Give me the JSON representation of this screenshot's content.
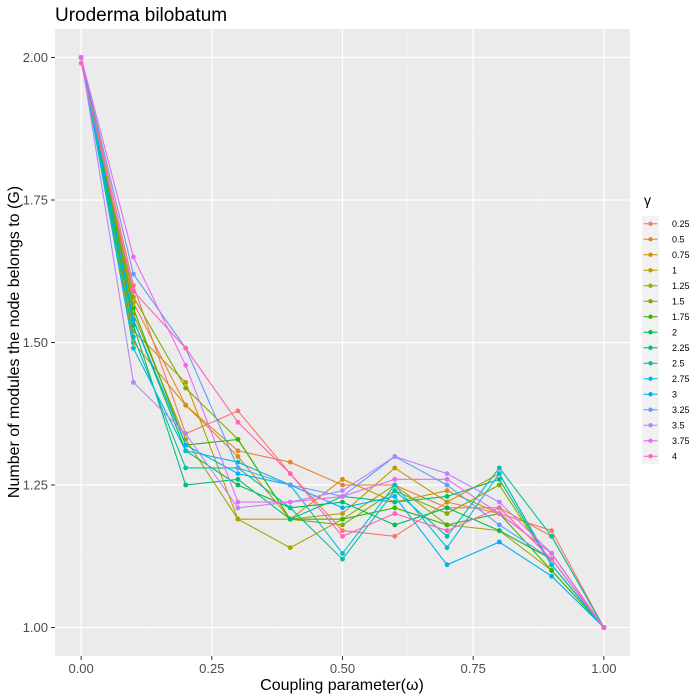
{
  "chart_data": {
    "type": "line",
    "title": "Uroderma bilobatum",
    "xlabel": "Coupling parameter(ω)",
    "ylabel": "Number of modules the node belongs to (G)",
    "x": [
      0,
      0.1,
      0.2,
      0.3,
      0.4,
      0.5,
      0.6,
      0.7,
      0.8,
      0.9,
      1.0
    ],
    "xlim": [
      -0.05,
      1.05
    ],
    "ylim": [
      0.95,
      2.05
    ],
    "xticks": [
      0,
      0.25,
      0.5,
      0.75,
      1
    ],
    "xtick_labels": [
      "0.00",
      "0.25",
      "0.50",
      "0.75",
      "1.00"
    ],
    "yticks": [
      1,
      1.25,
      1.5,
      1.75,
      2
    ],
    "ytick_labels": [
      "1.00",
      "1.25",
      "1.50",
      "1.75",
      "2.00"
    ],
    "grid": true,
    "legend_title": "γ",
    "legend_position": "right",
    "series": [
      {
        "name": "0.25",
        "color": "#F8766D",
        "values": [
          2.0,
          1.6,
          1.34,
          1.38,
          1.27,
          1.17,
          1.16,
          1.22,
          1.2,
          1.17,
          1.0
        ]
      },
      {
        "name": "0.5",
        "color": "#EA8331",
        "values": [
          2.0,
          1.57,
          1.39,
          1.31,
          1.29,
          1.25,
          1.25,
          1.21,
          1.21,
          1.16,
          1.0
        ]
      },
      {
        "name": "0.75",
        "color": "#D89000",
        "values": [
          2.0,
          1.5,
          1.39,
          1.3,
          1.19,
          1.26,
          1.22,
          1.24,
          1.2,
          1.13,
          1.0
        ]
      },
      {
        "name": "1",
        "color": "#C09B00",
        "values": [
          2.0,
          1.52,
          1.43,
          1.19,
          1.19,
          1.2,
          1.28,
          1.22,
          1.27,
          1.11,
          1.0
        ]
      },
      {
        "name": "1.25",
        "color": "#A3A500",
        "values": [
          2.0,
          1.55,
          1.33,
          1.19,
          1.14,
          1.19,
          1.25,
          1.18,
          1.17,
          1.1,
          1.0
        ]
      },
      {
        "name": "1.5",
        "color": "#7CAE00",
        "values": [
          2.0,
          1.58,
          1.42,
          1.33,
          1.19,
          1.18,
          1.24,
          1.2,
          1.25,
          1.11,
          1.0
        ]
      },
      {
        "name": "1.75",
        "color": "#39B600",
        "values": [
          2.0,
          1.56,
          1.32,
          1.33,
          1.19,
          1.19,
          1.21,
          1.18,
          1.2,
          1.1,
          1.0
        ]
      },
      {
        "name": "2",
        "color": "#00BB4E",
        "values": [
          2.0,
          1.54,
          1.31,
          1.25,
          1.21,
          1.22,
          1.18,
          1.21,
          1.17,
          1.12,
          1.0
        ]
      },
      {
        "name": "2.25",
        "color": "#00BF7D",
        "values": [
          2.0,
          1.53,
          1.25,
          1.26,
          1.19,
          1.23,
          1.22,
          1.23,
          1.26,
          1.11,
          1.0
        ]
      },
      {
        "name": "2.5",
        "color": "#00C1A3",
        "values": [
          2.0,
          1.51,
          1.28,
          1.28,
          1.21,
          1.12,
          1.24,
          1.16,
          1.28,
          1.16,
          1.0
        ]
      },
      {
        "name": "2.75",
        "color": "#00BCD8",
        "values": [
          2.0,
          1.49,
          1.31,
          1.29,
          1.25,
          1.13,
          1.25,
          1.14,
          1.27,
          1.11,
          1.0
        ]
      },
      {
        "name": "3",
        "color": "#00B0F6",
        "values": [
          2.0,
          1.54,
          1.32,
          1.27,
          1.25,
          1.21,
          1.23,
          1.11,
          1.15,
          1.09,
          1.0
        ]
      },
      {
        "name": "3.25",
        "color": "#619CFF",
        "values": [
          2.0,
          1.62,
          1.49,
          1.28,
          1.25,
          1.23,
          1.3,
          1.25,
          1.18,
          1.12,
          1.0
        ]
      },
      {
        "name": "3.5",
        "color": "#B983FF",
        "values": [
          2.0,
          1.43,
          1.34,
          1.21,
          1.22,
          1.24,
          1.3,
          1.27,
          1.22,
          1.13,
          1.0
        ]
      },
      {
        "name": "3.75",
        "color": "#E76BF3",
        "values": [
          2.0,
          1.65,
          1.46,
          1.22,
          1.22,
          1.23,
          1.26,
          1.26,
          1.2,
          1.13,
          1.0
        ]
      },
      {
        "name": "4",
        "color": "#FF62BC",
        "values": [
          1.99,
          1.59,
          1.49,
          1.36,
          1.27,
          1.16,
          1.2,
          1.17,
          1.21,
          1.12,
          1.0
        ]
      }
    ]
  }
}
